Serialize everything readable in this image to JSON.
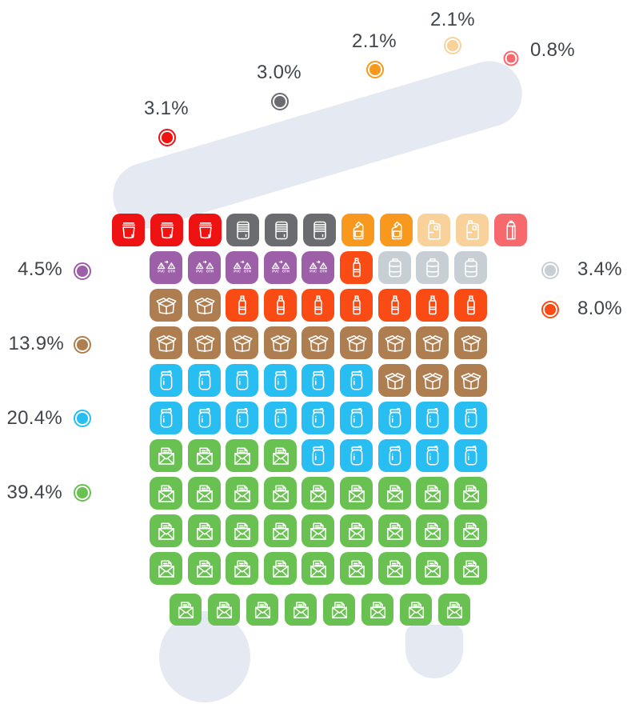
{
  "categories": {
    "bucket": {
      "color": "#EE1212",
      "icon": "bucket-icon",
      "percent_label": "3.1%"
    },
    "can": {
      "color": "#6B6C6F",
      "icon": "can-icon",
      "percent_label": "3.0%"
    },
    "detergent": {
      "color": "#F8991D",
      "icon": "detergent-bottle-icon",
      "percent_label": "2.1%"
    },
    "jug": {
      "color": "#F8D29A",
      "icon": "jug-icon",
      "percent_label": "2.1%"
    },
    "carton": {
      "color": "#F8696E",
      "icon": "carton-icon",
      "percent_label": "0.8%"
    },
    "pvc": {
      "color": "#9C5FA8",
      "icon": "recycle-pvc-oth-icon",
      "percent_label": "4.5%"
    },
    "canister": {
      "color": "#C7CED4",
      "icon": "canister-icon",
      "percent_label": "3.4%"
    },
    "bottle": {
      "color": "#FB4B15",
      "icon": "pet-bottle-icon",
      "percent_label": "8.0%"
    },
    "box": {
      "color": "#AF7E50",
      "icon": "cardboard-box-icon",
      "percent_label": "13.9%"
    },
    "jar": {
      "color": "#29BEF2",
      "icon": "jar-icon",
      "percent_label": "20.4%"
    },
    "envelope": {
      "color": "#69C152",
      "icon": "envelope-icon",
      "percent_label": "39.4%"
    }
  },
  "callouts": [
    {
      "id": "bucket",
      "text": "3.1%"
    },
    {
      "id": "can",
      "text": "3.0%"
    },
    {
      "id": "detergent",
      "text": "2.1%"
    },
    {
      "id": "jug",
      "text": "2.1%"
    },
    {
      "id": "carton",
      "text": "0.8%"
    },
    {
      "id": "pvc",
      "text": "4.5%"
    },
    {
      "id": "canister",
      "text": "3.4%"
    },
    {
      "id": "bottle",
      "text": "8.0%"
    },
    {
      "id": "box",
      "text": "13.9%"
    },
    {
      "id": "jar",
      "text": "20.4%"
    },
    {
      "id": "envelope",
      "text": "39.4%"
    }
  ],
  "grid": {
    "rows": [
      {
        "cells": [
          "bucket",
          "bucket",
          "bucket",
          "can",
          "can",
          "can",
          "detergent",
          "detergent",
          "jug",
          "jug",
          "carton"
        ]
      },
      {
        "cells": [
          "pvc",
          "pvc",
          "pvc",
          "pvc",
          "pvc",
          "bottle",
          "canister",
          "canister",
          "canister"
        ]
      },
      {
        "cells": [
          "box",
          "box",
          "bottle",
          "bottle",
          "bottle",
          "bottle",
          "bottle",
          "bottle",
          "bottle"
        ]
      },
      {
        "cells": [
          "box",
          "box",
          "box",
          "box",
          "box",
          "box",
          "box",
          "box",
          "box"
        ]
      },
      {
        "cells": [
          "jar",
          "jar",
          "jar",
          "jar",
          "jar",
          "jar",
          "box",
          "box",
          "box"
        ]
      },
      {
        "cells": [
          "jar",
          "jar",
          "jar",
          "jar",
          "jar",
          "jar",
          "jar",
          "jar",
          "jar"
        ]
      },
      {
        "cells": [
          "envelope",
          "envelope",
          "envelope",
          "envelope",
          "jar",
          "jar",
          "jar",
          "jar",
          "jar"
        ]
      },
      {
        "cells": [
          "envelope",
          "envelope",
          "envelope",
          "envelope",
          "envelope",
          "envelope",
          "envelope",
          "envelope",
          "envelope"
        ]
      },
      {
        "cells": [
          "envelope",
          "envelope",
          "envelope",
          "envelope",
          "envelope",
          "envelope",
          "envelope",
          "envelope",
          "envelope"
        ]
      },
      {
        "cells": [
          "envelope",
          "envelope",
          "envelope",
          "envelope",
          "envelope",
          "envelope",
          "envelope",
          "envelope",
          "envelope"
        ]
      },
      {
        "cells": [
          "envelope",
          "envelope",
          "envelope",
          "envelope",
          "envelope",
          "envelope",
          "envelope",
          "envelope"
        ]
      }
    ]
  },
  "chart_data": {
    "type": "pie",
    "variant": "waffle-pictogram (trash-bin shaped, 100 icon tiles = 100%)",
    "title": "",
    "unit": "%",
    "total_tiles": 100,
    "series": [
      {
        "icon": "envelope",
        "percent": 39.4,
        "tiles": 39,
        "color": "#69C152"
      },
      {
        "icon": "jar",
        "percent": 20.4,
        "tiles": 20,
        "color": "#29BEF2"
      },
      {
        "icon": "cardboard-box",
        "percent": 13.9,
        "tiles": 14,
        "color": "#AF7E50"
      },
      {
        "icon": "pet-bottle",
        "percent": 8.0,
        "tiles": 8,
        "color": "#FB4B15"
      },
      {
        "icon": "recycle-pvc-oth",
        "percent": 4.5,
        "tiles": 5,
        "color": "#9C5FA8"
      },
      {
        "icon": "canister",
        "percent": 3.4,
        "tiles": 3,
        "color": "#C7CED4"
      },
      {
        "icon": "bucket",
        "percent": 3.1,
        "tiles": 3,
        "color": "#EE1212"
      },
      {
        "icon": "can",
        "percent": 3.0,
        "tiles": 3,
        "color": "#6B6C6F"
      },
      {
        "icon": "detergent-bottle",
        "percent": 2.1,
        "tiles": 2,
        "color": "#F8991D"
      },
      {
        "icon": "jug",
        "percent": 2.1,
        "tiles": 2,
        "color": "#F8D29A"
      },
      {
        "icon": "carton",
        "percent": 0.8,
        "tiles": 1,
        "color": "#F8696E"
      }
    ],
    "legend_position": "around figure (left, right and top callout dots)",
    "grid": "11 staggered rows: 11 + 9x9 + 8 tiles"
  }
}
